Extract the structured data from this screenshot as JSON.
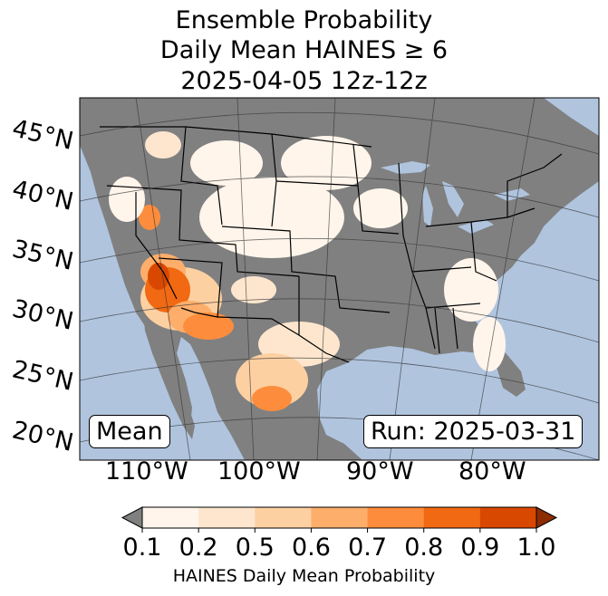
{
  "title": {
    "line1": "Ensemble Probability",
    "line2": "Daily Mean HAINES ≥ 6",
    "line3": "2025-04-05 12z-12z"
  },
  "map": {
    "projection": "lambert-conformal",
    "region": "Continental United States and northern Mexico",
    "ocean_color": "#b0c4de",
    "land_color": "#808080",
    "lat_labels": [
      "45°N",
      "40°N",
      "35°N",
      "30°N",
      "25°N",
      "20°N"
    ],
    "lon_labels": [
      "110°W",
      "100°W",
      "90°W",
      "80°W"
    ]
  },
  "labels": {
    "stat": "Mean",
    "run": "Run: 2025-03-31"
  },
  "colorbar": {
    "ticks": [
      "0.1",
      "0.2",
      "0.5",
      "0.6",
      "0.7",
      "0.8",
      "0.9",
      "1.0"
    ],
    "colors": [
      "#fff5eb",
      "#fee6ce",
      "#fdd0a2",
      "#fdae6b",
      "#fd8d3c",
      "#f16913",
      "#d94801",
      "#8c2d04"
    ],
    "under_color": "#808080",
    "label": "HAINES Daily Mean Probability"
  }
}
